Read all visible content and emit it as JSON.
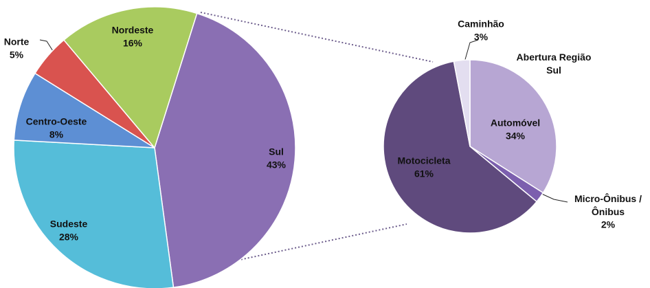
{
  "chart_data": [
    {
      "type": "pie",
      "categories": [
        "Sul",
        "Sudeste",
        "Centro-Oeste",
        "Norte",
        "Nordeste"
      ],
      "values": [
        43,
        28,
        8,
        5,
        16
      ],
      "value_labels": [
        "43%",
        "28%",
        "8%",
        "5%",
        "16%"
      ],
      "colors": [
        "#8a6fb3",
        "#55bdd9",
        "#5d8fd4",
        "#d9534f",
        "#a9cb5f"
      ]
    },
    {
      "type": "pie",
      "title": "Abertura Região Sul",
      "categories": [
        "Automóvel",
        "Micro-Ônibus / Ônibus",
        "Motocicleta",
        "Caminhão"
      ],
      "values": [
        34,
        2,
        61,
        3
      ],
      "value_labels": [
        "34%",
        "2%",
        "61%",
        "3%"
      ],
      "colors": [
        "#b7a6d3",
        "#7c5fae",
        "#5f4a7d",
        "#e3def0"
      ]
    }
  ]
}
